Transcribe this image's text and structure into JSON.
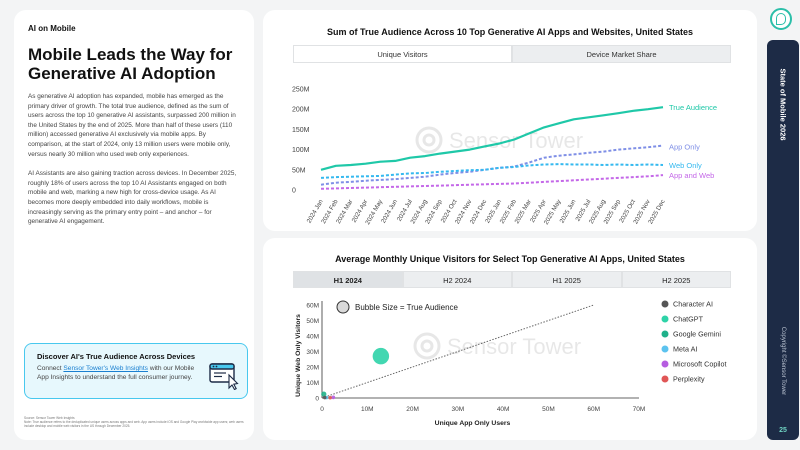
{
  "left_panel": {
    "kicker": "AI on Mobile",
    "headline": "Mobile Leads the Way for Generative AI Adoption",
    "paragraph1": "As generative AI adoption has expanded, mobile has emerged as the primary driver of growth. The total true audience, defined as the sum of users across the top 10 generative AI assistants, surpassed 200 million in the United States by the end of 2025. More than half of these users (110 million) accessed generative AI exclusively via mobile apps. By comparison, at the start of 2024, only 13 million users were mobile only, versus nearly 30 million who used web only experiences.",
    "paragraph2": "AI Assistants are also gaining traction across devices. In December 2025, roughly 18% of users across the top 10 AI Assistants engaged on both mobile and web, marking a new high for cross-device usage. As AI becomes more deeply embedded into daily workflows, mobile is increasingly serving as the primary entry point – and anchor – for generative AI engagement.",
    "cta": {
      "title": "Discover AI's True Audience Across Devices",
      "body_prefix": "Connect ",
      "link": "Sensor Tower's Web Insights",
      "body_suffix": " with our Mobile App Insights to understand the full consumer journey."
    },
    "source_line1": "Source: Sensor Tower Web Insights",
    "source_line2": "Note: True audience refers to the deduplicated unique users across apps and web. App users include iOS and Google Play worldwide app users; web users include desktop and mobile web visitors in the US through December 2025."
  },
  "chart1": {
    "title": "Sum of True Audience Across 10 Top Generative AI Apps and Websites, United States",
    "tabs": [
      {
        "label": "Unique Visitors",
        "active": true
      },
      {
        "label": "Device Market Share",
        "active": false
      }
    ],
    "watermark": "Sensor Tower"
  },
  "chart2": {
    "title": "Average Monthly Unique Visitors for Select Top Generative AI Apps, United States",
    "tabs": [
      {
        "label": "H1 2024",
        "active": true
      },
      {
        "label": "H2 2024",
        "active": false
      },
      {
        "label": "H1 2025",
        "active": false
      },
      {
        "label": "H2 2025",
        "active": false
      }
    ],
    "bubble_note": "Bubble Size = True Audience",
    "watermark": "Sensor Tower"
  },
  "chart_data": [
    {
      "type": "line",
      "title": "Sum of True Audience Across 10 Top Generative AI Apps and Websites, United States",
      "x": [
        "2024 Jan",
        "2024 Feb",
        "2024 Mar",
        "2024 Apr",
        "2024 May",
        "2024 Jun",
        "2024 Jul",
        "2024 Aug",
        "2024 Sep",
        "2024 Oct",
        "2024 Nov",
        "2024 Dec",
        "2025 Jan",
        "2025 Feb",
        "2025 Mar",
        "2025 Apr",
        "2025 May",
        "2025 Jun",
        "2025 Jul",
        "2025 Aug",
        "2025 Sep",
        "2025 Oct",
        "2025 Nov",
        "2025 Dec"
      ],
      "yticks": [
        0,
        50,
        100,
        150,
        200,
        250
      ],
      "ytick_labels": [
        "0",
        "50M",
        "100M",
        "150M",
        "200M",
        "250M"
      ],
      "ylim": [
        0,
        250
      ],
      "units": "M",
      "series": [
        {
          "name": "True Audience",
          "color": "#1fc8a8",
          "dashed": false,
          "values": [
            50,
            60,
            62,
            65,
            70,
            72,
            80,
            84,
            90,
            95,
            100,
            108,
            115,
            125,
            140,
            155,
            165,
            175,
            180,
            185,
            190,
            196,
            200,
            205
          ]
        },
        {
          "name": "App Only",
          "color": "#7f8fe6",
          "dashed": true,
          "values": [
            13,
            18,
            20,
            23,
            25,
            27,
            30,
            33,
            38,
            42,
            45,
            50,
            55,
            58,
            68,
            80,
            85,
            88,
            92,
            95,
            100,
            103,
            106,
            110
          ]
        },
        {
          "name": "Web Only",
          "color": "#35b9ef",
          "dashed": true,
          "values": [
            30,
            32,
            33,
            34,
            35,
            38,
            41,
            42,
            45,
            47,
            49,
            50,
            55,
            57,
            61,
            63,
            64,
            63,
            63,
            62,
            63,
            62,
            63,
            62
          ]
        },
        {
          "name": "App and Web",
          "color": "#c468e8",
          "dashed": true,
          "values": [
            3,
            4,
            5,
            6,
            7,
            8,
            9,
            10,
            11,
            12,
            13,
            14,
            15,
            16,
            18,
            20,
            22,
            24,
            26,
            28,
            30,
            32,
            34,
            37
          ]
        }
      ]
    },
    {
      "type": "scatter",
      "title": "Average Monthly Unique Visitors for Select Top Generative AI Apps, United States",
      "xlabel": "Unique App Only Users",
      "ylabel": "Unique Web Only Visitors",
      "xlim": [
        0,
        70
      ],
      "ylim": [
        0,
        60
      ],
      "xticks": [
        0,
        10,
        20,
        30,
        40,
        50,
        60,
        70
      ],
      "xtick_labels": [
        "0",
        "10M",
        "20M",
        "30M",
        "40M",
        "50M",
        "60M",
        "70M"
      ],
      "yticks": [
        0,
        10,
        20,
        30,
        40,
        50,
        60
      ],
      "ytick_labels": [
        "0",
        "10M",
        "20M",
        "30M",
        "40M",
        "50M",
        "60M"
      ],
      "reference_line": [
        [
          0,
          0
        ],
        [
          60,
          60
        ]
      ],
      "points": [
        {
          "name": "Character AI",
          "color": "#555555",
          "x": 0.6,
          "y": 0.3,
          "size": 1.2
        },
        {
          "name": "ChatGPT",
          "color": "#2ed3a8",
          "x": 13,
          "y": 27,
          "size": 40
        },
        {
          "name": "Google Gemini",
          "color": "#1fb18a",
          "x": 0.4,
          "y": 2.5,
          "size": 4
        },
        {
          "name": "Meta AI",
          "color": "#5cc3ef",
          "x": 1.0,
          "y": 0.3,
          "size": 1.5
        },
        {
          "name": "Microsoft Copilot",
          "color": "#b65de0",
          "x": 2.5,
          "y": 0.4,
          "size": 2
        },
        {
          "name": "Perplexity",
          "color": "#e05656",
          "x": 1.8,
          "y": 0.2,
          "size": 1
        }
      ]
    }
  ],
  "sidebar": {
    "report": "State of Mobile 2026",
    "copyright": "Copyright ©Sensor Tower",
    "page": "25"
  },
  "colors": {
    "accent": "#2bbfa9",
    "navy": "#1d2b46",
    "cta_bg": "#e7f8fd",
    "cta_border": "#48c8ee"
  }
}
